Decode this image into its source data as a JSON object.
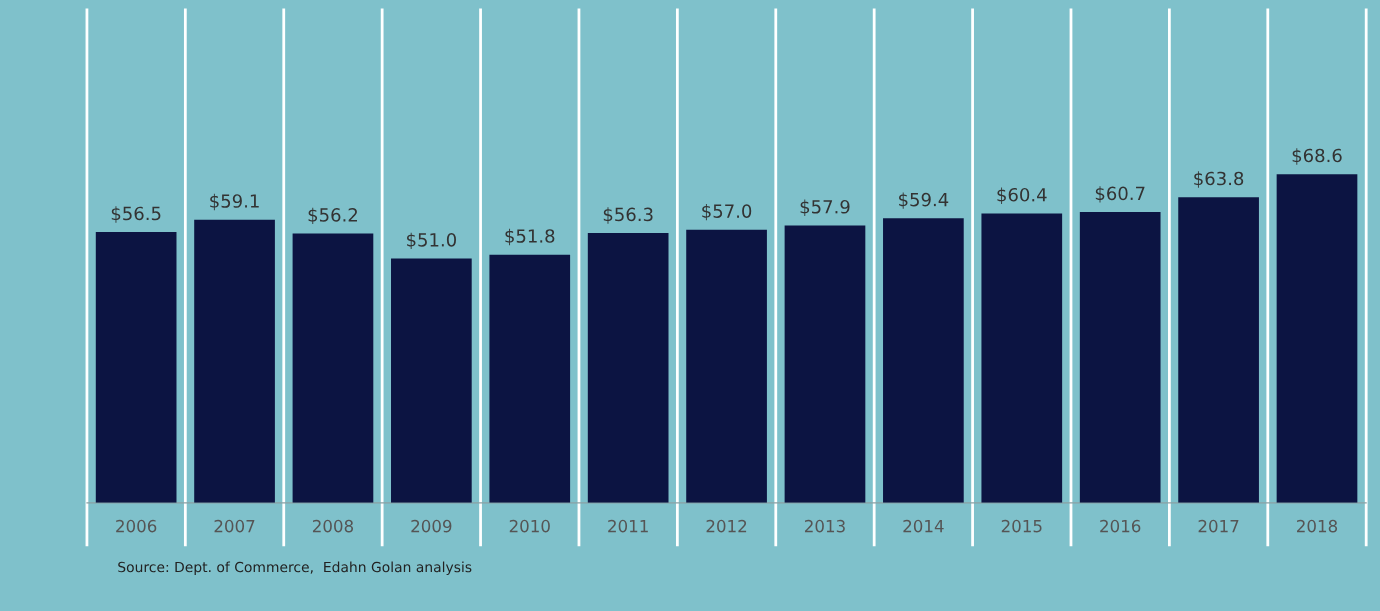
{
  "chart_data": {
    "type": "bar",
    "categories": [
      "2006",
      "2007",
      "2008",
      "2009",
      "2010",
      "2011",
      "2012",
      "2013",
      "2014",
      "2015",
      "2016",
      "2017",
      "2018"
    ],
    "values": [
      56.5,
      59.1,
      56.2,
      51.0,
      51.8,
      56.3,
      57.0,
      57.9,
      59.4,
      60.4,
      60.7,
      63.8,
      68.6
    ],
    "value_labels": [
      "$56.5",
      "$59.1",
      "$56.2",
      "$51.0",
      "$51.8",
      "$56.3",
      "$57.0",
      "$57.9",
      "$59.4",
      "$60.4",
      "$60.7",
      "$63.8",
      "$68.6"
    ],
    "color": "#0c1442",
    "grid": "x",
    "tick_labels": "x",
    "annotations": [
      "Source: Dept. of Commerce,  Edahn Golan analysis"
    ]
  }
}
